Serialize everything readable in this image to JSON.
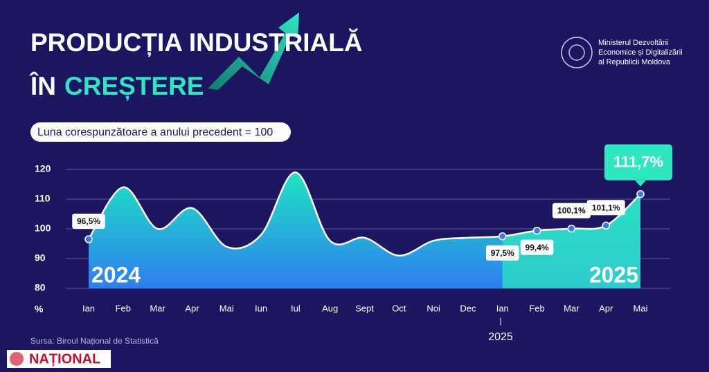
{
  "chart_data": {
    "type": "area",
    "title_line1": "PRODUCȚIA INDUSTRIALĂ",
    "title_line2_a": "ÎN",
    "title_line2_b": "CREȘTERE",
    "subtitle": "Luna corespunzătoare a anului precedent = 100",
    "publisher": [
      "Ministerul Dezvoltării",
      "Economice și Digitalizării",
      "al Republicii Moldova"
    ],
    "source": "Sursa: Biroul Național de Statistică",
    "watermark": "NAȚIONAL",
    "y_unit": "%",
    "year_labels": [
      "2024",
      "2025"
    ],
    "year_axis_mark": "2025",
    "categories": [
      "Ian",
      "Feb",
      "Mar",
      "Apr",
      "Mai",
      "Iun",
      "Iul",
      "Aug",
      "Sept",
      "Oct",
      "Noi",
      "Dec",
      "Ian",
      "Feb",
      "Mar",
      "Apr",
      "Mai"
    ],
    "series": [
      {
        "name": "Producția industrială",
        "color": "#ffffff",
        "values": [
          96.5,
          114,
          100,
          107,
          94,
          98,
          119,
          96,
          97,
          91,
          96,
          97,
          97.5,
          99.4,
          100.1,
          101.1,
          111.7
        ],
        "value_labels": [
          "96,5%",
          null,
          null,
          null,
          null,
          null,
          null,
          null,
          null,
          null,
          null,
          null,
          "97,5%",
          "99,4%",
          "100,1%",
          "101,1%",
          "111,7%"
        ]
      }
    ],
    "ylim": [
      80,
      120
    ],
    "yticks": [
      80,
      90,
      100,
      110,
      120
    ],
    "grid": true
  }
}
